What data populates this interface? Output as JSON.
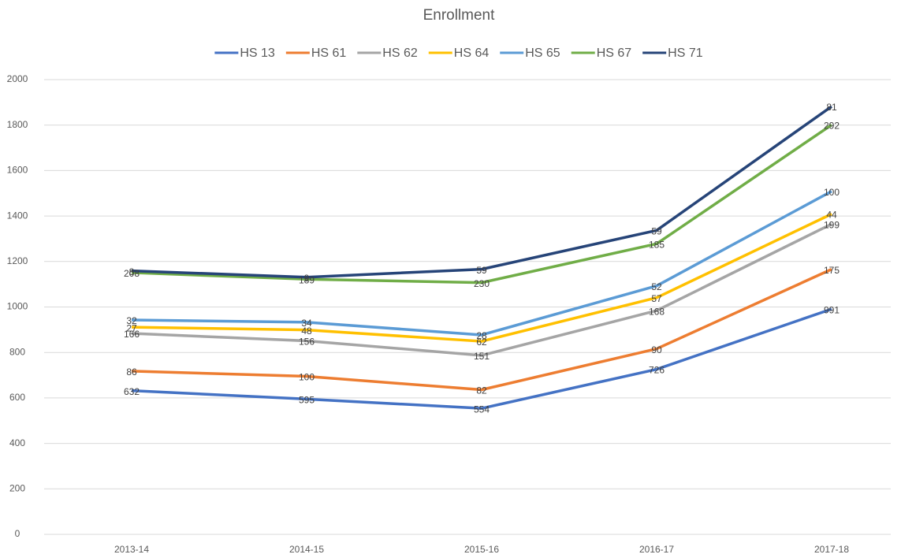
{
  "chart_data": {
    "type": "line",
    "stacked": true,
    "title": "Enrollment",
    "categories": [
      "2013-14",
      "2014-15",
      "2015-16",
      "2016-17",
      "2017-18"
    ],
    "series": [
      {
        "name": "HS 13",
        "color": "#4472c4",
        "values": [
          632,
          595,
          554,
          726,
          991
        ]
      },
      {
        "name": "HS 61",
        "color": "#ed7d31",
        "values": [
          86,
          100,
          82,
          90,
          175
        ]
      },
      {
        "name": "HS 62",
        "color": "#a5a5a5",
        "values": [
          166,
          156,
          151,
          168,
          199
        ]
      },
      {
        "name": "HS 64",
        "color": "#ffc000",
        "values": [
          27,
          48,
          62,
          57,
          44
        ]
      },
      {
        "name": "HS 65",
        "color": "#5b9bd5",
        "values": [
          32,
          34,
          28,
          52,
          100
        ]
      },
      {
        "name": "HS 67",
        "color": "#70ad47",
        "values": [
          208,
          189,
          230,
          185,
          292
        ]
      },
      {
        "name": "HS 71",
        "color": "#264478",
        "values": [
          8,
          9,
          59,
          59,
          81
        ]
      }
    ],
    "ylim": [
      0,
      2000
    ],
    "yticks": [
      0,
      200,
      400,
      600,
      800,
      1000,
      1200,
      1400,
      1600,
      1800,
      2000
    ],
    "grid": true,
    "legend": "top"
  }
}
